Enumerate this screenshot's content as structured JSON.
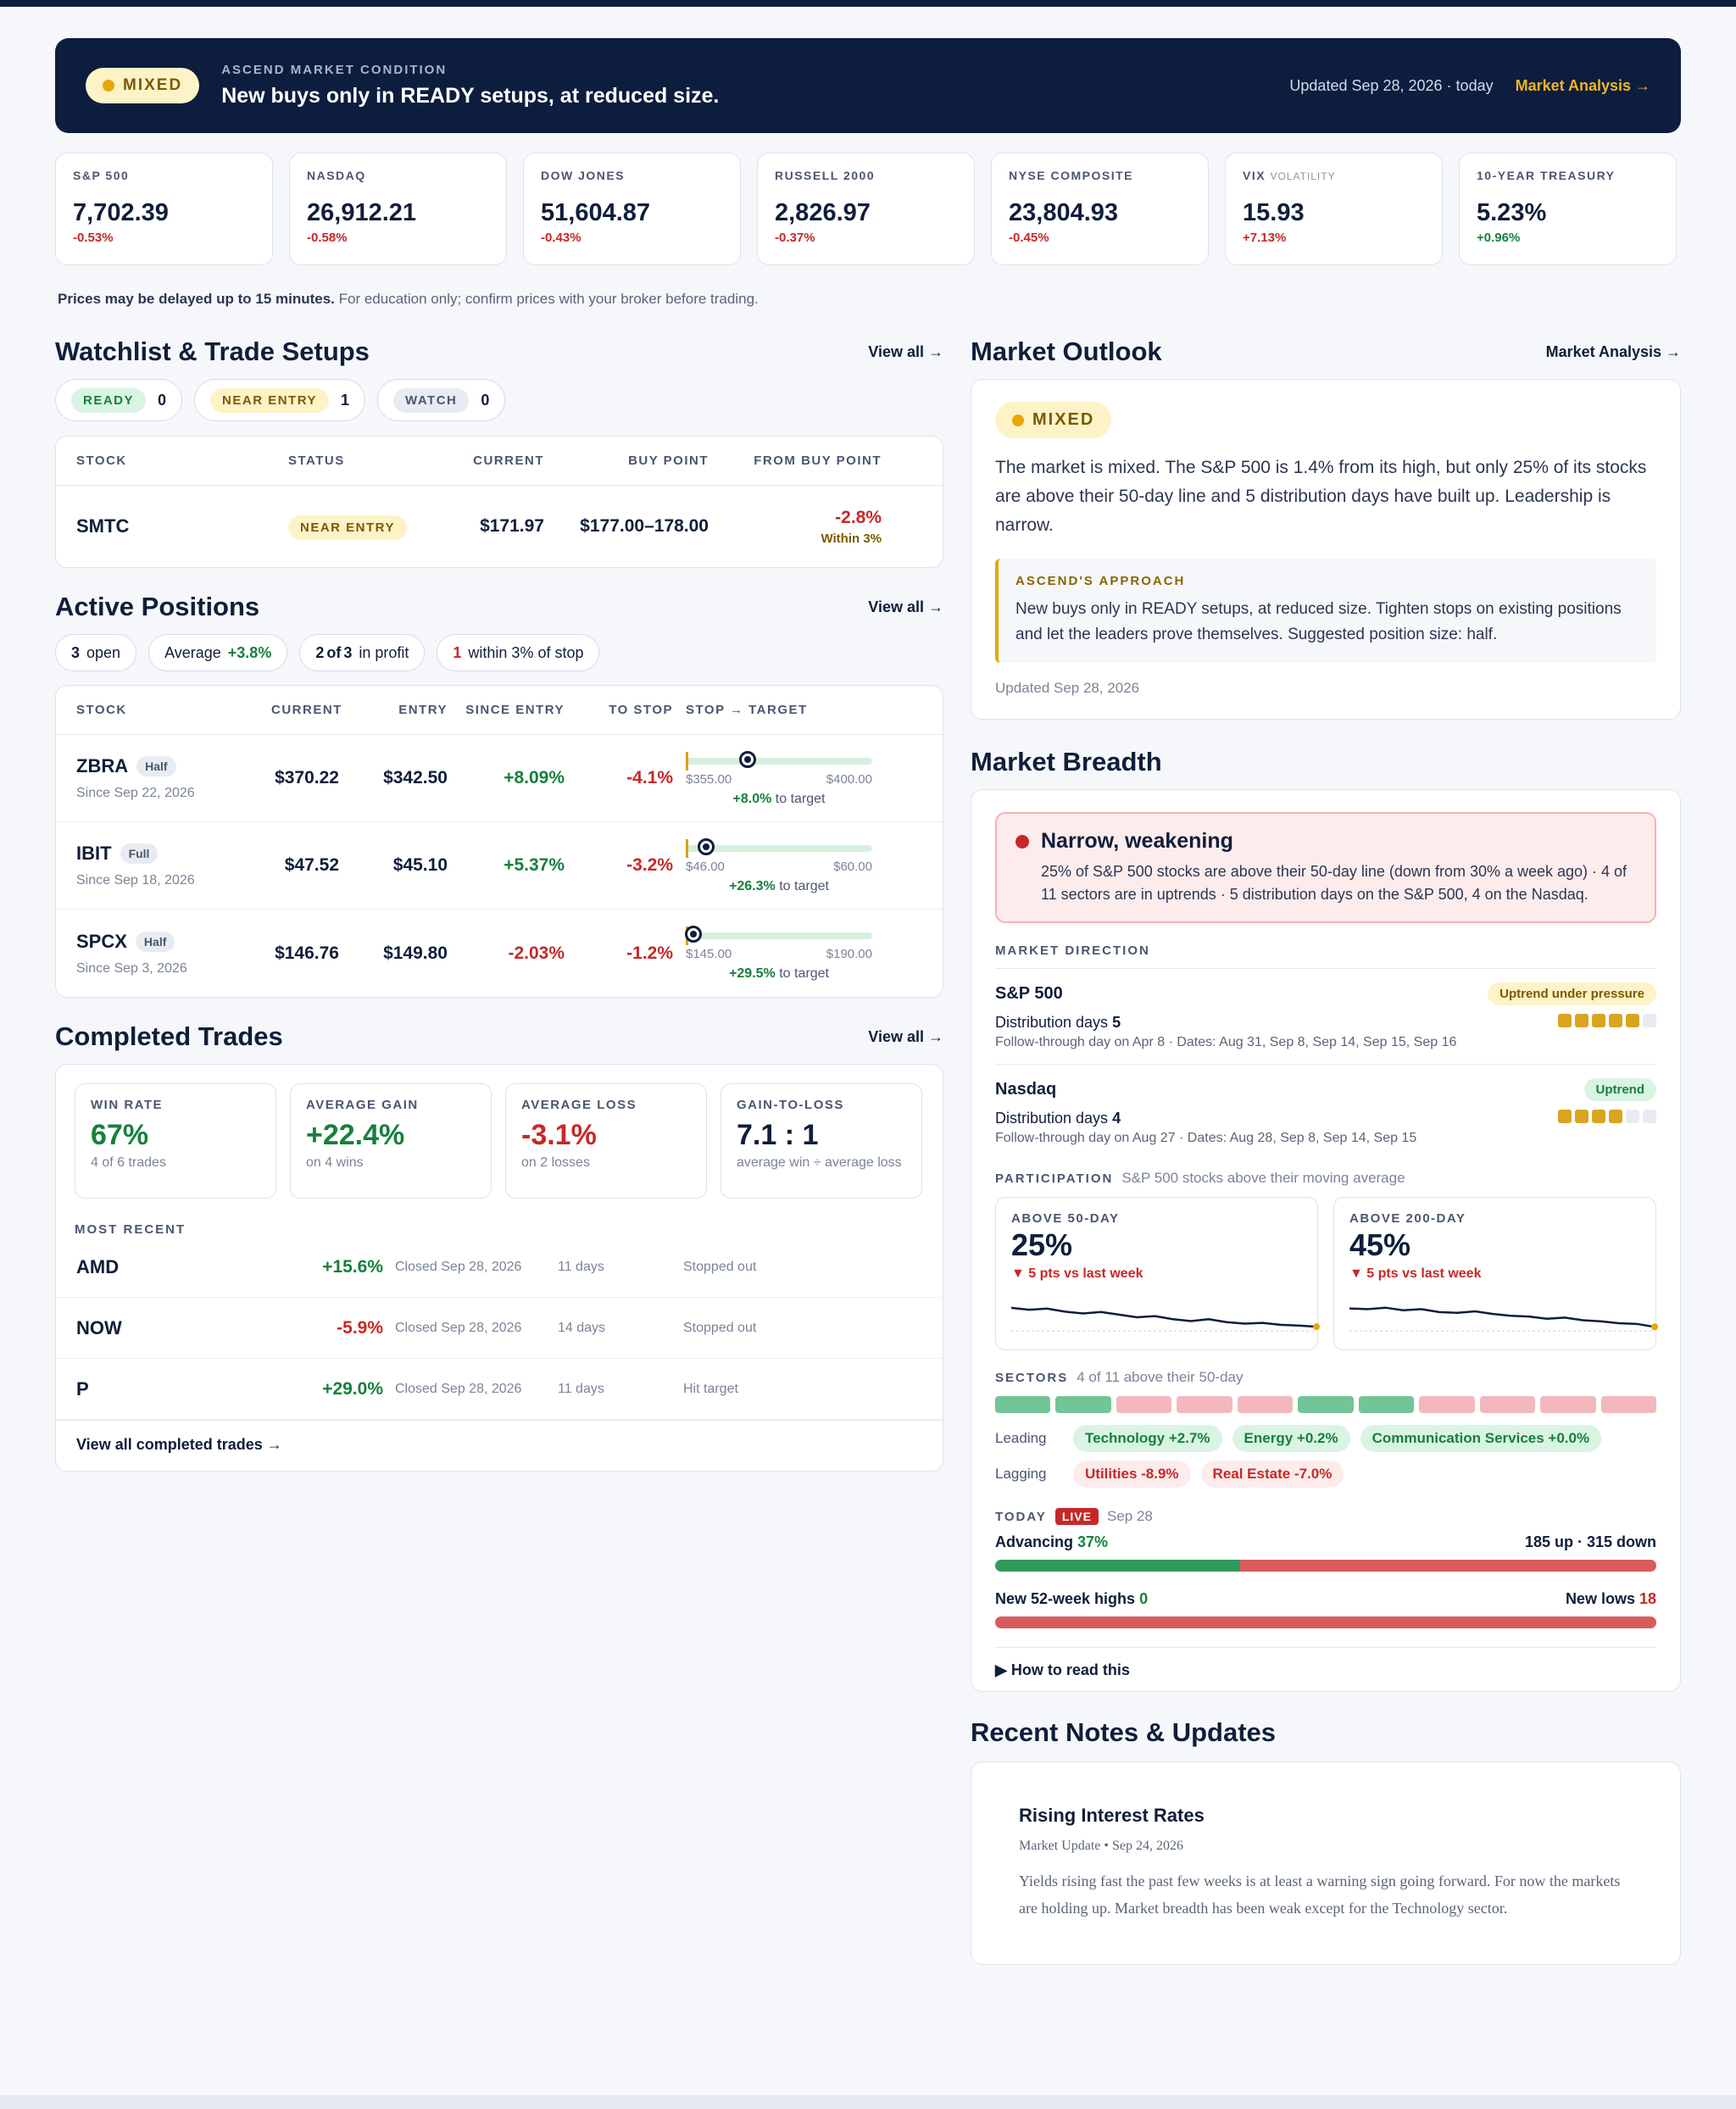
{
  "banner": {
    "status": "MIXED",
    "label": "ASCEND MARKET CONDITION",
    "message": "New buys only in READY setups, at reduced size.",
    "updated": "Updated Sep 28, 2026 · today",
    "link": "Market Analysis →"
  },
  "tickers": [
    {
      "name": "S&P 500",
      "sub": "",
      "value": "7,702.39",
      "change": "-0.53%",
      "dir": "neg"
    },
    {
      "name": "NASDAQ",
      "sub": "",
      "value": "26,912.21",
      "change": "-0.58%",
      "dir": "neg"
    },
    {
      "name": "DOW JONES",
      "sub": "",
      "value": "51,604.87",
      "change": "-0.43%",
      "dir": "neg"
    },
    {
      "name": "RUSSELL 2000",
      "sub": "",
      "value": "2,826.97",
      "change": "-0.37%",
      "dir": "neg"
    },
    {
      "name": "NYSE COMPOSITE",
      "sub": "",
      "value": "23,804.93",
      "change": "-0.45%",
      "dir": "neg"
    },
    {
      "name": "VIX",
      "sub": "VOLATILITY",
      "value": "15.93",
      "change": "+7.13%",
      "dir": "neg"
    },
    {
      "name": "10-YEAR TREASURY",
      "sub": "",
      "value": "5.23%",
      "change": "+0.96%",
      "dir": "pos"
    }
  ],
  "disclaimer": {
    "bold": "Prices may be delayed up to 15 minutes.",
    "rest": " For education only; confirm prices with your broker before trading."
  },
  "watchlist": {
    "title": "Watchlist & Trade Setups",
    "link": "View all →",
    "chips": [
      {
        "label": "READY",
        "count": "0"
      },
      {
        "label": "NEAR ENTRY",
        "count": "1"
      },
      {
        "label": "WATCH",
        "count": "0"
      }
    ],
    "headers": [
      "STOCK",
      "STATUS",
      "CURRENT",
      "BUY POINT",
      "FROM BUY POINT"
    ],
    "rows": [
      {
        "stock": "SMTC",
        "status": "NEAR ENTRY",
        "current": "$171.97",
        "buy_point": "$177.00–178.00",
        "from": "-2.8%",
        "from_note": "Within 3%"
      }
    ]
  },
  "positions": {
    "title": "Active Positions",
    "link": "View all →",
    "chips": {
      "open_n": "3",
      "open": "open",
      "avg_lbl": "Average",
      "avg": "+3.8%",
      "profit_a": "2",
      "profit_of": "of",
      "profit_b": "3",
      "profit": "in profit",
      "stop_n": "1",
      "stop": "within 3% of stop"
    },
    "headers": [
      "STOCK",
      "CURRENT",
      "ENTRY",
      "SINCE ENTRY",
      "TO STOP",
      "STOP → TARGET"
    ],
    "rows": [
      {
        "stock": "ZBRA",
        "size": "Half",
        "since": "Since Sep 22, 2026",
        "current": "$370.22",
        "entry": "$342.50",
        "since_entry": "+8.09%",
        "se_dir": "pos",
        "to_stop": "-4.1%",
        "stop": "$355.00",
        "target": "$400.00",
        "to_target": "+8.0%",
        "to_target_lbl": " to target",
        "progress": 0.33
      },
      {
        "stock": "IBIT",
        "size": "Full",
        "since": "Since Sep 18, 2026",
        "current": "$47.52",
        "entry": "$45.10",
        "since_entry": "+5.37%",
        "se_dir": "pos",
        "to_stop": "-3.2%",
        "stop": "$46.00",
        "target": "$60.00",
        "to_target": "+26.3%",
        "to_target_lbl": " to target",
        "progress": 0.11
      },
      {
        "stock": "SPCX",
        "size": "Half",
        "since": "Since Sep 3, 2026",
        "current": "$146.76",
        "entry": "$149.80",
        "since_entry": "-2.03%",
        "se_dir": "neg",
        "to_stop": "-1.2%",
        "stop": "$145.00",
        "target": "$190.00",
        "to_target": "+29.5%",
        "to_target_lbl": " to target",
        "progress": 0.04
      }
    ]
  },
  "completed": {
    "title": "Completed Trades",
    "link": "View all →",
    "stats": [
      {
        "label": "WIN RATE",
        "value": "67%",
        "sub": "4 of 6 trades",
        "dir": "pos"
      },
      {
        "label": "AVERAGE GAIN",
        "value": "+22.4%",
        "sub": "on 4 wins",
        "dir": "pos"
      },
      {
        "label": "AVERAGE LOSS",
        "value": "-3.1%",
        "sub": "on 2 losses",
        "dir": "neg"
      },
      {
        "label": "GAIN-TO-LOSS",
        "value": "7.1 : 1",
        "sub": "average win ÷ average loss",
        "dir": ""
      }
    ],
    "recent_label": "MOST RECENT",
    "rows": [
      {
        "stock": "AMD",
        "pct": "+15.6%",
        "dir": "pos",
        "closed": "Closed Sep 28, 2026",
        "days": "11 days",
        "result": "Stopped out"
      },
      {
        "stock": "NOW",
        "pct": "-5.9%",
        "dir": "neg",
        "closed": "Closed Sep 28, 2026",
        "days": "14 days",
        "result": "Stopped out"
      },
      {
        "stock": "P",
        "pct": "+29.0%",
        "dir": "pos",
        "closed": "Closed Sep 28, 2026",
        "days": "11 days",
        "result": "Hit target"
      }
    ],
    "view_all": "View all completed trades →"
  },
  "outlook": {
    "title": "Market Outlook",
    "link": "Market Analysis →",
    "status": "MIXED",
    "text": "The market is mixed. The S&P 500 is 1.4% from its high, but only 25% of its stocks are above their 50-day line and 5 distribution days have built up. Leadership is narrow.",
    "approach_label": "ASCEND'S APPROACH",
    "approach": "New buys only in READY setups, at reduced size. Tighten stops on existing positions and let the leaders prove themselves. Suggested position size: half.",
    "updated": "Updated Sep 28, 2026"
  },
  "breadth": {
    "title": "Market Breadth",
    "warn_title": "Narrow, weakening",
    "warn_body": "25% of S&P 500 stocks are above their 50-day line (down from 30% a week ago) · 4 of 11 sectors are in uptrends · 5 distribution days on the S&P 500, 4 on the Nasdaq.",
    "direction_label": "MARKET DIRECTION",
    "indices": [
      {
        "name": "S&P 500",
        "badge": "Uptrend under pressure",
        "dist_lbl": "Distribution days ",
        "dist": "5",
        "detail": "Follow-through day on Apr 8 · Dates: Aug 31, Sep 8, Sep 14, Sep 15, Sep 16",
        "filled": 5
      },
      {
        "name": "Nasdaq",
        "badge": "Uptrend",
        "dist_lbl": "Distribution days ",
        "dist": "4",
        "detail": "Follow-through day on Aug 27 · Dates: Aug 28, Sep 8, Sep 14, Sep 15",
        "filled": 4
      }
    ],
    "participation_label": "PARTICIPATION",
    "participation_sub": "S&P 500 stocks above their moving average",
    "participation": [
      {
        "label": "ABOVE 50-DAY",
        "value": "25%",
        "change": "▼ 5 pts vs last week",
        "series": [
          30,
          29.5,
          29.8,
          29,
          28.5,
          28.9,
          28.2,
          27.5,
          27.8,
          27,
          26.5,
          27,
          26.2,
          25.8,
          26,
          25.5,
          25.3,
          25
        ]
      },
      {
        "label": "ABOVE 200-DAY",
        "value": "45%",
        "change": "▼ 5 pts vs last week",
        "series": [
          50,
          49.8,
          50.2,
          49.5,
          49.8,
          49,
          48.8,
          49.2,
          48.5,
          48,
          47.8,
          47.2,
          47.5,
          46.8,
          46.5,
          46,
          45.8,
          45
        ]
      }
    ],
    "sectors_label": "SECTORS",
    "sectors_sub": "4 of 11 above their 50-day",
    "sector_states": [
      "up",
      "up",
      "down",
      "down",
      "down",
      "up",
      "up",
      "down",
      "down",
      "down",
      "down"
    ],
    "leading_lbl": "Leading",
    "leading": [
      "Technology +2.7%",
      "Energy +0.2%",
      "Communication Services +0.0%"
    ],
    "lagging_lbl": "Lagging",
    "lagging": [
      "Utilities -8.9%",
      "Real Estate -7.0%"
    ],
    "today_lbl": "TODAY",
    "live": "LIVE",
    "today_date": "Sep 28",
    "adv_lbl": "Advancing ",
    "adv_pct": "37%",
    "adv_counts": "185 up · 315 down",
    "adv_fraction": 0.37,
    "highs_lbl": "New 52-week highs ",
    "highs": "0",
    "lows_lbl": "New lows ",
    "lows": "18",
    "highs_fraction": 0,
    "how": "▶ How to read this"
  },
  "notes": {
    "title": "Recent Notes & Updates",
    "items": [
      {
        "title": "Rising Interest Rates",
        "meta": "Market Update • Sep 24, 2026",
        "body": "Yields rising fast the past few weeks is at least a warning sign going forward. For now the markets are holding up. Market breadth has been weak except for the Technology sector."
      }
    ]
  },
  "colors": {
    "navy": "#0c1d3e",
    "green": "#16803c",
    "red": "#c62828",
    "amber": "#e6a800",
    "sector_up": "#72c596",
    "sector_down": "#f2b8bd",
    "bar_adv": "#2f9a5c",
    "bar_dec": "#d95c5c"
  }
}
